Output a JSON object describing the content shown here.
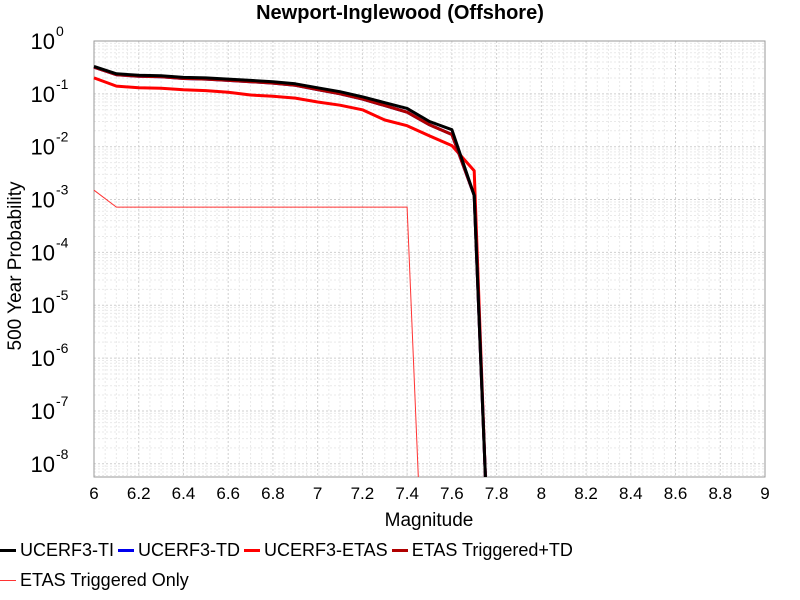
{
  "chart_data": {
    "type": "line",
    "title": "Newport-Inglewood (Offshore)",
    "xlabel": "Magnitude",
    "ylabel": "500 Year Probability",
    "xlim": [
      6,
      9
    ],
    "ylim_log10": [
      -8.25,
      0
    ],
    "y_scale": "log",
    "x_ticks": [
      "6",
      "6.2",
      "6.4",
      "6.6",
      "6.8",
      "7",
      "7.2",
      "7.4",
      "7.6",
      "7.8",
      "8",
      "8.2",
      "8.4",
      "8.6",
      "8.8",
      "9"
    ],
    "y_ticks": [
      {
        "base": "10",
        "exp": "0",
        "pow": 0
      },
      {
        "base": "10",
        "exp": "-1",
        "pow": -1
      },
      {
        "base": "10",
        "exp": "-2",
        "pow": -2
      },
      {
        "base": "10",
        "exp": "-3",
        "pow": -3
      },
      {
        "base": "10",
        "exp": "-4",
        "pow": -4
      },
      {
        "base": "10",
        "exp": "-5",
        "pow": -5
      },
      {
        "base": "10",
        "exp": "-6",
        "pow": -6
      },
      {
        "base": "10",
        "exp": "-7",
        "pow": -7
      },
      {
        "base": "10",
        "exp": "-8",
        "pow": -8
      }
    ],
    "grid": true,
    "legend_position": "bottom",
    "series": [
      {
        "name": "UCERF3-TI",
        "color": "#000000",
        "width": 3,
        "x": [
          6.0,
          6.1,
          6.2,
          6.3,
          6.4,
          6.5,
          6.6,
          6.7,
          6.8,
          6.9,
          7.0,
          7.1,
          7.2,
          7.3,
          7.4,
          7.5,
          7.6,
          7.7,
          7.75
        ],
        "y": [
          0.33,
          0.24,
          0.225,
          0.22,
          0.205,
          0.2,
          0.19,
          0.18,
          0.17,
          0.155,
          0.13,
          0.11,
          0.088,
          0.068,
          0.053,
          0.03,
          0.021,
          0.0012,
          1e-09
        ]
      },
      {
        "name": "UCERF3-TD",
        "color": "#0000ee",
        "width": 3,
        "x": [
          6.0,
          6.1,
          6.2,
          6.3,
          6.4,
          6.5,
          6.6,
          6.7,
          6.8,
          6.9,
          7.0,
          7.1,
          7.2,
          7.3,
          7.4,
          7.5,
          7.6,
          7.7,
          7.75
        ],
        "y": [
          0.32,
          0.23,
          0.215,
          0.21,
          0.195,
          0.19,
          0.18,
          0.17,
          0.16,
          0.145,
          0.12,
          0.1,
          0.08,
          0.06,
          0.045,
          0.026,
          0.017,
          0.0012,
          1e-09
        ]
      },
      {
        "name": "UCERF3-ETAS",
        "color": "#ff0000",
        "width": 3,
        "x": [
          6.0,
          6.1,
          6.2,
          6.3,
          6.4,
          6.5,
          6.6,
          6.7,
          6.8,
          6.9,
          7.0,
          7.1,
          7.2,
          7.3,
          7.4,
          7.5,
          7.6,
          7.7,
          7.75
        ],
        "y": [
          0.2,
          0.14,
          0.13,
          0.128,
          0.12,
          0.115,
          0.107,
          0.095,
          0.09,
          0.083,
          0.07,
          0.061,
          0.05,
          0.032,
          0.025,
          0.016,
          0.0105,
          0.0035,
          1e-09
        ]
      },
      {
        "name": "ETAS Triggered+TD",
        "color": "#b00000",
        "width": 3,
        "x": [
          6.0,
          6.1,
          6.2,
          6.3,
          6.4,
          6.5,
          6.6,
          6.7,
          6.8,
          6.9,
          7.0,
          7.1,
          7.2,
          7.3,
          7.4,
          7.5,
          7.6,
          7.7,
          7.75
        ],
        "y": [
          0.32,
          0.23,
          0.215,
          0.21,
          0.195,
          0.19,
          0.18,
          0.17,
          0.16,
          0.145,
          0.12,
          0.1,
          0.08,
          0.06,
          0.045,
          0.026,
          0.017,
          0.0012,
          1e-09
        ]
      },
      {
        "name": "ETAS Triggered Only",
        "color": "#ff3333",
        "width": 1,
        "x": [
          6.0,
          6.1,
          6.2,
          6.3,
          6.4,
          6.5,
          6.6,
          6.7,
          6.8,
          6.9,
          7.0,
          7.1,
          7.2,
          7.3,
          7.4,
          7.45
        ],
        "y": [
          0.0015,
          0.00072,
          0.00072,
          0.00072,
          0.00072,
          0.00072,
          0.00072,
          0.00072,
          0.00072,
          0.00072,
          0.00072,
          0.00072,
          0.00072,
          0.00072,
          0.00072,
          1e-09
        ]
      }
    ]
  }
}
